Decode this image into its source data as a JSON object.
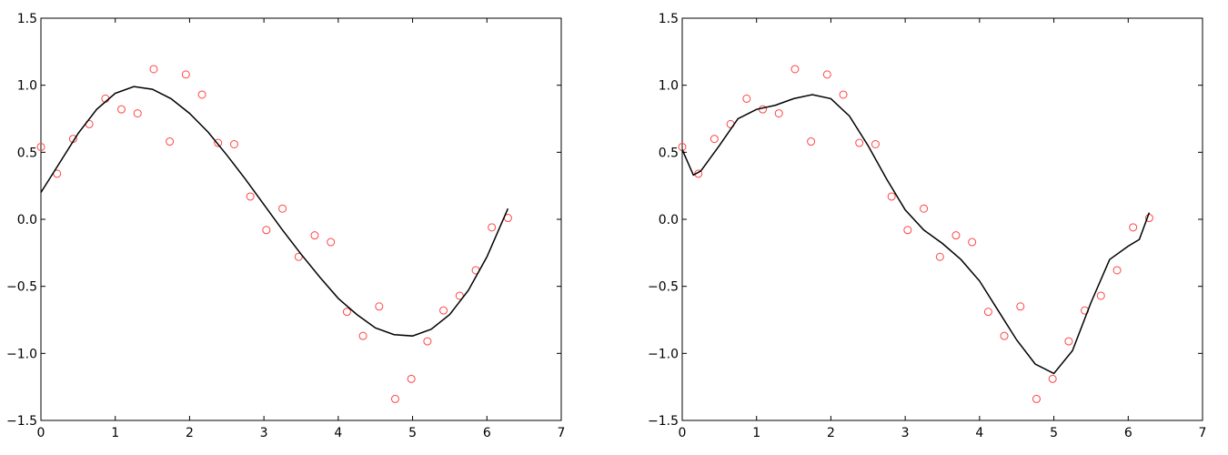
{
  "chart_data": [
    {
      "type": "scatter",
      "xlim": [
        0,
        7
      ],
      "xticks": [
        0,
        1,
        2,
        3,
        4,
        5,
        6,
        7
      ],
      "ylim": [
        -1.5,
        1.5
      ],
      "yticks": [
        {
          "value": -1.5,
          "label": "−1.5"
        },
        {
          "value": -1.0,
          "label": "−1.0"
        },
        {
          "value": -0.5,
          "label": "−0.5"
        },
        {
          "value": 0,
          "label": "0.0"
        },
        0.5,
        {
          "value": 1.0,
          "label": "1.0"
        },
        1.5
      ],
      "series": [
        {
          "style": "markers",
          "color": "#ff4444",
          "x": [
            0,
            0.217,
            0.433,
            0.65,
            0.867,
            1.083,
            1.3,
            1.517,
            1.733,
            1.95,
            2.167,
            2.383,
            2.6,
            2.817,
            3.033,
            3.25,
            3.467,
            3.683,
            3.9,
            4.117,
            4.333,
            4.55,
            4.766,
            4.983,
            5.2,
            5.416,
            5.633,
            5.85,
            6.066,
            6.283
          ],
          "values": [
            0.54,
            0.34,
            0.6,
            0.71,
            0.9,
            0.82,
            0.79,
            1.12,
            0.58,
            1.08,
            0.93,
            0.57,
            0.56,
            0.17,
            -0.08,
            0.08,
            -0.28,
            -0.12,
            -0.17,
            -0.69,
            -0.87,
            -0.65,
            -1.34,
            -1.19,
            -0.91,
            -0.68,
            -0.57,
            -0.38,
            -0.06,
            0.01
          ]
        },
        {
          "style": "line",
          "color": "#000000",
          "x": [
            0,
            0.25,
            0.5,
            0.75,
            1.0,
            1.25,
            1.5,
            1.75,
            2.0,
            2.25,
            2.5,
            2.75,
            3.0,
            3.25,
            3.5,
            3.75,
            4.0,
            4.25,
            4.5,
            4.75,
            5.0,
            5.25,
            5.5,
            5.75,
            6.0,
            6.283
          ],
          "values": [
            0.2,
            0.42,
            0.64,
            0.82,
            0.94,
            0.99,
            0.97,
            0.9,
            0.79,
            0.65,
            0.48,
            0.3,
            0.11,
            -0.08,
            -0.26,
            -0.43,
            -0.59,
            -0.71,
            -0.81,
            -0.86,
            -0.87,
            -0.82,
            -0.71,
            -0.53,
            -0.28,
            0.08
          ]
        }
      ]
    },
    {
      "type": "scatter",
      "xlim": [
        0,
        7
      ],
      "xticks": [
        0,
        1,
        2,
        3,
        4,
        5,
        6,
        7
      ],
      "ylim": [
        -1.5,
        1.5
      ],
      "yticks": [
        {
          "value": -1.5,
          "label": "−1.5"
        },
        {
          "value": -1.0,
          "label": "−1.0"
        },
        {
          "value": -0.5,
          "label": "−0.5"
        },
        {
          "value": 0,
          "label": "0.0"
        },
        0.5,
        {
          "value": 1.0,
          "label": "1.0"
        },
        1.5
      ],
      "series": [
        {
          "style": "markers",
          "color": "#ff4444",
          "x": [
            0,
            0.217,
            0.433,
            0.65,
            0.867,
            1.083,
            1.3,
            1.517,
            1.733,
            1.95,
            2.167,
            2.383,
            2.6,
            2.817,
            3.033,
            3.25,
            3.467,
            3.683,
            3.9,
            4.117,
            4.333,
            4.55,
            4.766,
            4.983,
            5.2,
            5.416,
            5.633,
            5.85,
            6.066,
            6.283
          ],
          "values": [
            0.54,
            0.34,
            0.6,
            0.71,
            0.9,
            0.82,
            0.79,
            1.12,
            0.58,
            1.08,
            0.93,
            0.57,
            0.56,
            0.17,
            -0.08,
            0.08,
            -0.28,
            -0.12,
            -0.17,
            -0.69,
            -0.87,
            -0.65,
            -1.34,
            -1.19,
            -0.91,
            -0.68,
            -0.57,
            -0.38,
            -0.06,
            0.01
          ]
        },
        {
          "style": "line",
          "color": "#000000",
          "x": [
            0,
            0.15,
            0.25,
            0.5,
            0.75,
            1.0,
            1.25,
            1.5,
            1.75,
            2.0,
            2.25,
            2.5,
            2.75,
            3.0,
            3.25,
            3.5,
            3.75,
            4.0,
            4.25,
            4.5,
            4.75,
            5.0,
            5.25,
            5.5,
            5.75,
            6.0,
            6.15,
            6.283
          ],
          "values": [
            0.52,
            0.33,
            0.36,
            0.55,
            0.75,
            0.82,
            0.85,
            0.9,
            0.93,
            0.9,
            0.77,
            0.55,
            0.3,
            0.07,
            -0.08,
            -0.18,
            -0.3,
            -0.46,
            -0.68,
            -0.9,
            -1.08,
            -1.15,
            -0.98,
            -0.62,
            -0.3,
            -0.2,
            -0.15,
            0.05
          ]
        }
      ]
    }
  ]
}
